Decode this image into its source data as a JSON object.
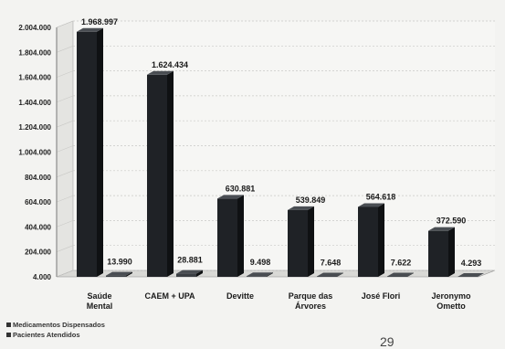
{
  "chart_data": {
    "type": "bar",
    "categories": [
      [
        "Saúde",
        "Mental"
      ],
      [
        "CAEM + UPA"
      ],
      [
        "Devitte"
      ],
      [
        "Parque das",
        "Árvores"
      ],
      [
        "José Flori"
      ],
      [
        "Jeronymo",
        "Ometto"
      ]
    ],
    "series": [
      {
        "name": "Medicamentos Dispensados",
        "values": [
          1968997,
          1624434,
          630881,
          539849,
          564618,
          372590
        ],
        "labels": [
          "1.968.997",
          "1.624.434",
          "630.881",
          "539.849",
          "564.618",
          "372.590"
        ],
        "color": "#1f2226"
      },
      {
        "name": "Pacientes Atendidos",
        "values": [
          13990,
          28881,
          9498,
          7648,
          7622,
          4293
        ],
        "labels": [
          "13.990",
          "28.881",
          "9.498",
          "7.648",
          "7.622",
          "4.293"
        ],
        "color": "#3b3f44"
      }
    ],
    "yticks": [
      4000,
      204000,
      404000,
      604000,
      804000,
      1004000,
      1204000,
      1404000,
      1604000,
      1804000,
      2004000
    ],
    "ytick_labels": [
      "4.000",
      "204.000",
      "404.000",
      "604.000",
      "804.000",
      "1.004.000",
      "1.204.000",
      "1.404.000",
      "1.604.000",
      "1.804.000",
      "2.004.000"
    ],
    "ylim": [
      4000,
      2004000
    ],
    "grid": true,
    "legend_position": "bottom-left",
    "title": "",
    "xlabel": "",
    "ylabel": ""
  },
  "page_number": "29"
}
